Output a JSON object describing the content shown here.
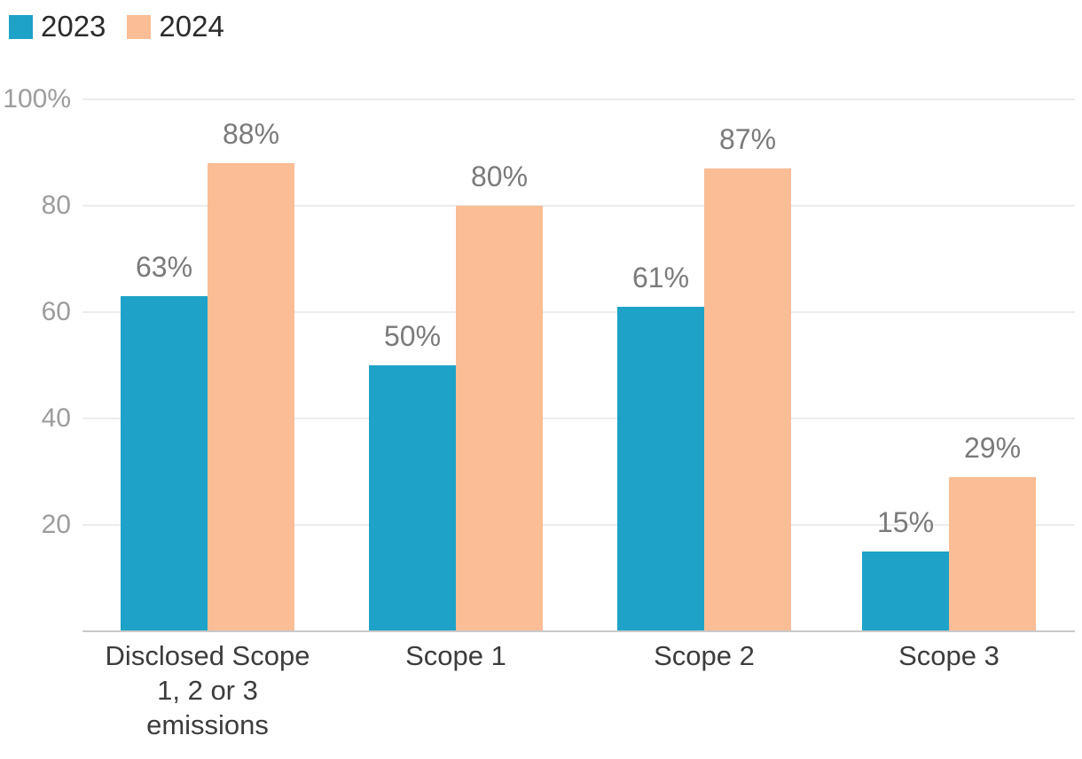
{
  "colors": {
    "background": "#FFFFFF",
    "series_2023": "#1EA2C8",
    "series_2024": "#FABD96",
    "gridline": "#ECECEC",
    "axis_line": "#C9C9C9",
    "tick_text": "#9C9C9C",
    "value_label_text": "#7A7A7A",
    "category_text": "#3C3C3C",
    "legend_text": "#2B2B2B"
  },
  "legend": {
    "position": "top-left",
    "items": [
      {
        "label": "2023",
        "color": "#1EA2C8"
      },
      {
        "label": "2024",
        "color": "#FABD96"
      }
    ]
  },
  "chart_data": {
    "type": "bar",
    "title": "",
    "xlabel": "",
    "ylabel": "",
    "categories": [
      "Disclosed Scope 1, 2 or 3 emissions",
      "Scope 1",
      "Scope 2",
      "Scope 3"
    ],
    "series": [
      {
        "name": "2023",
        "color": "#1EA2C8",
        "values": [
          63,
          50,
          61,
          15
        ],
        "value_labels": [
          "63%",
          "50%",
          "61%",
          "15%"
        ]
      },
      {
        "name": "2024",
        "color": "#FABD96",
        "values": [
          88,
          80,
          87,
          29
        ],
        "value_labels": [
          "88%",
          "80%",
          "87%",
          "29%"
        ]
      }
    ],
    "value_suffix": "%",
    "ylim": [
      0,
      100
    ],
    "yticks": [
      {
        "value": 100,
        "label": "100%"
      },
      {
        "value": 80,
        "label": "80"
      },
      {
        "value": 60,
        "label": "60"
      },
      {
        "value": 40,
        "label": "40"
      },
      {
        "value": 20,
        "label": "20"
      }
    ],
    "grid": true,
    "legend_position": "top-left"
  }
}
